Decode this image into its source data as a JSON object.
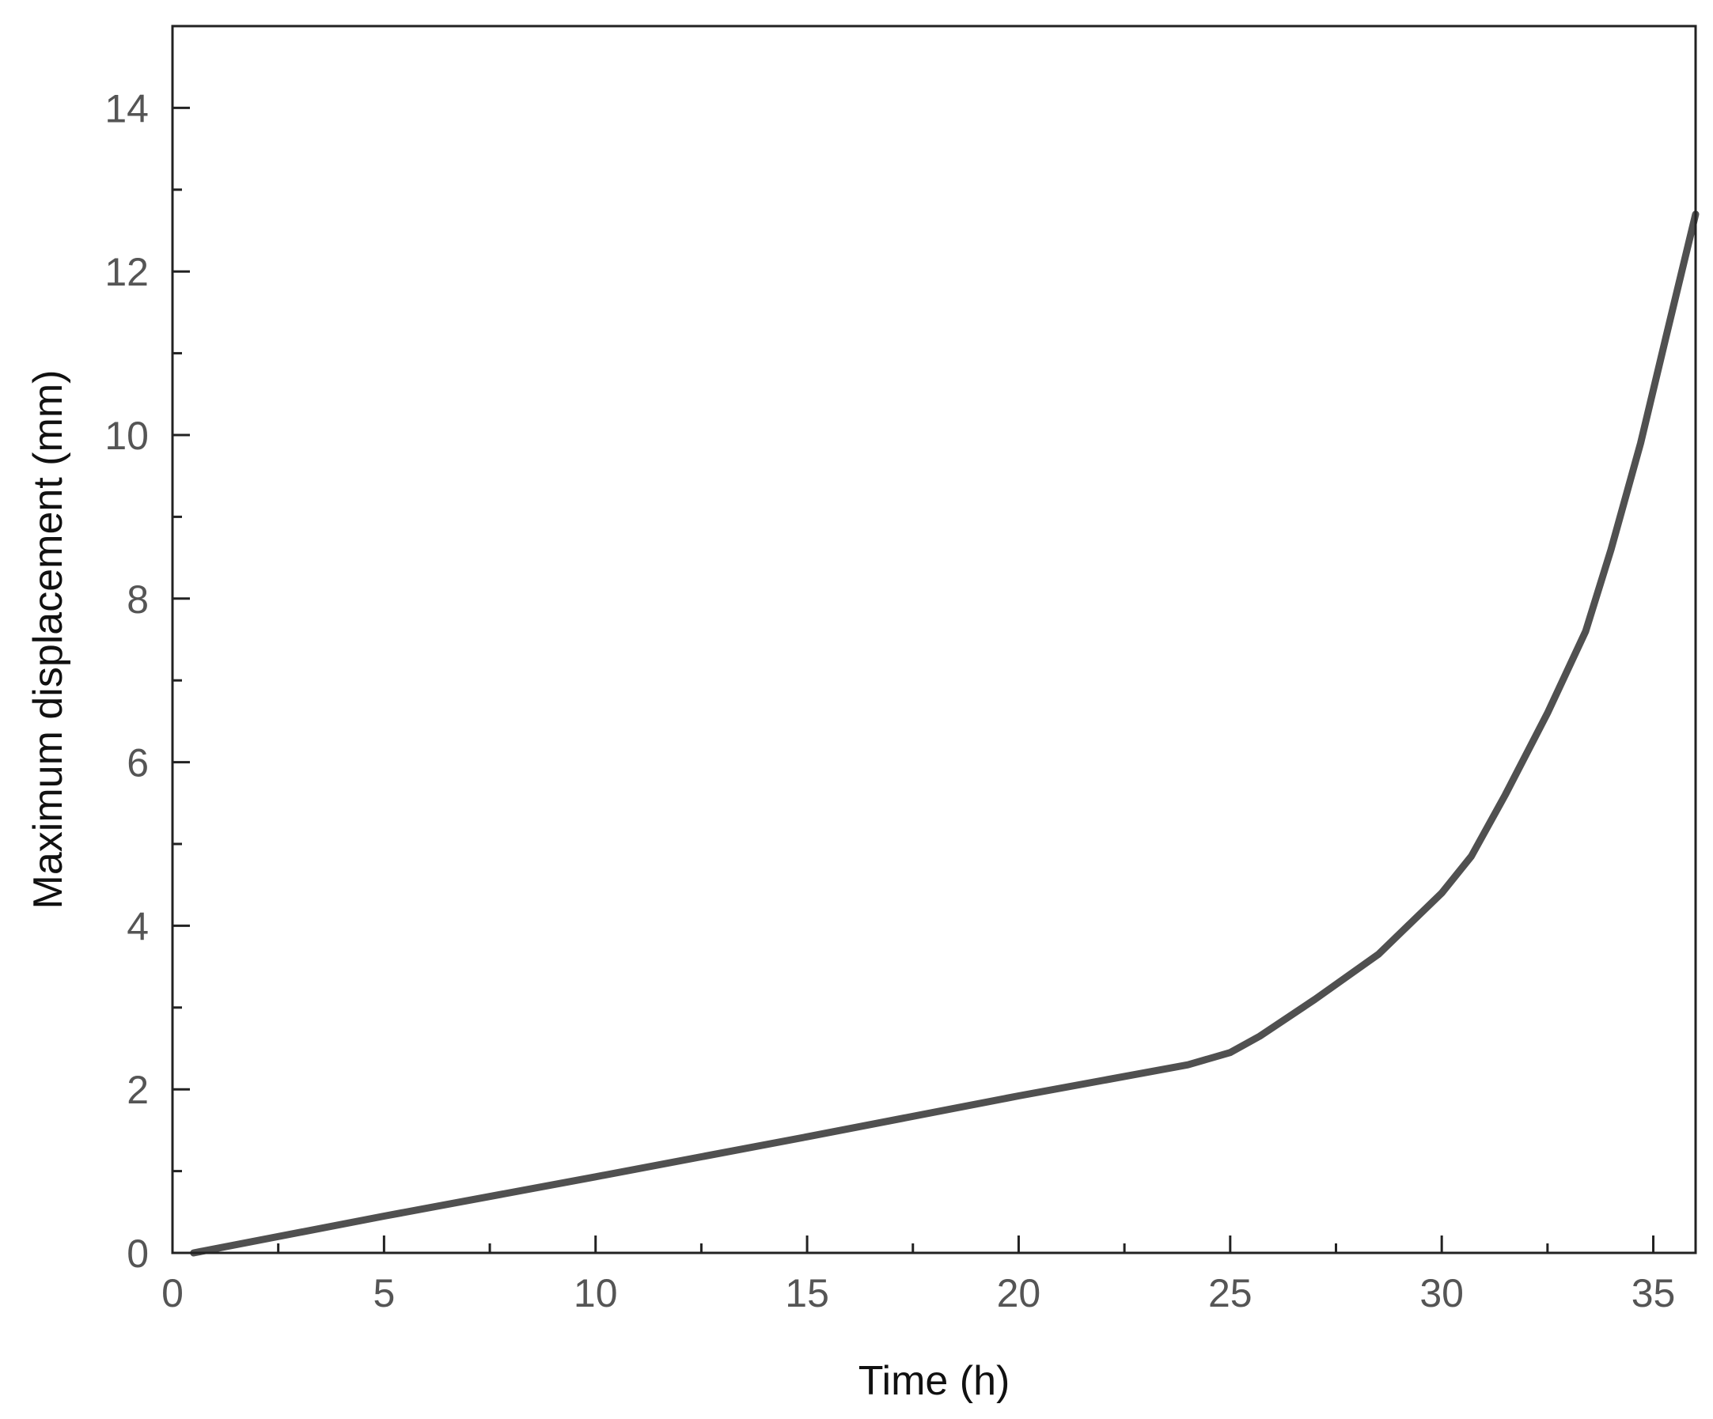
{
  "chart_data": {
    "type": "line",
    "title": "",
    "xlabel": "Time (h)",
    "ylabel": "Maximum displacement (mm)",
    "xlim": [
      0,
      36
    ],
    "ylim": [
      0,
      15
    ],
    "x_major_ticks": [
      0,
      5,
      10,
      15,
      20,
      25,
      30,
      35
    ],
    "x_minor_ticks": [
      2.5,
      7.5,
      12.5,
      17.5,
      22.5,
      27.5,
      32.5
    ],
    "y_major_ticks": [
      0,
      2,
      4,
      6,
      8,
      10,
      12,
      14
    ],
    "y_minor_ticks": [
      1,
      3,
      5,
      7,
      9,
      11,
      13
    ],
    "grid": false,
    "legend": "none",
    "series": [
      {
        "color": "#505050",
        "points": [
          [
            0.5,
            0.0
          ],
          [
            5,
            0.45
          ],
          [
            10,
            0.93
          ],
          [
            15,
            1.42
          ],
          [
            20,
            1.92
          ],
          [
            24,
            2.3
          ],
          [
            25,
            2.45
          ],
          [
            25.7,
            2.65
          ],
          [
            27,
            3.1
          ],
          [
            28.5,
            3.65
          ],
          [
            30,
            4.4
          ],
          [
            30.7,
            4.85
          ],
          [
            31.5,
            5.6
          ],
          [
            32.5,
            6.6
          ],
          [
            33.4,
            7.6
          ],
          [
            34,
            8.6
          ],
          [
            34.7,
            9.9
          ],
          [
            35.3,
            11.2
          ],
          [
            36,
            12.7
          ]
        ]
      }
    ]
  }
}
